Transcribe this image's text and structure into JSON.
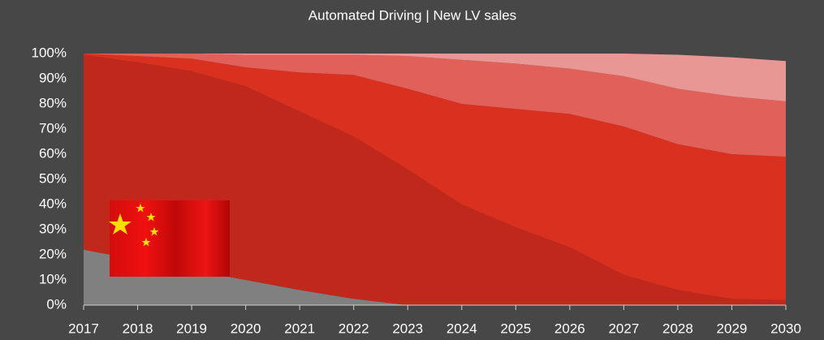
{
  "chart_data": {
    "type": "stacked-area",
    "title": "Automated Driving | New LV sales",
    "x": [
      2017,
      2018,
      2019,
      2020,
      2021,
      2022,
      2023,
      2024,
      2025,
      2026,
      2027,
      2028,
      2029,
      2030
    ],
    "series": [
      {
        "color": "#808080",
        "values": [
          22,
          18,
          14,
          10,
          6,
          2.5,
          0,
          0,
          0,
          0,
          0,
          0,
          0,
          0
        ]
      },
      {
        "color": "#c0281c",
        "values": [
          77.5,
          78.5,
          79,
          77,
          71,
          64.5,
          54,
          40,
          31,
          23,
          12,
          6,
          2.5,
          2
        ]
      },
      {
        "color": "#d9301f",
        "values": [
          0.5,
          2.5,
          5,
          7.5,
          15.5,
          24.5,
          32,
          40,
          47,
          53,
          59,
          58,
          57.5,
          57
        ]
      },
      {
        "color": "#e2605a",
        "values": [
          0,
          1,
          2,
          5,
          7,
          8,
          13,
          17.5,
          18,
          18,
          20,
          22,
          23,
          22
        ]
      },
      {
        "color": "#e99794",
        "values": [
          0,
          0,
          0,
          0.5,
          0.5,
          0.5,
          1,
          2.5,
          4,
          6,
          9,
          13.5,
          15.5,
          16
        ]
      }
    ],
    "xlim": [
      2017,
      2030
    ],
    "xticks": [
      2017,
      2018,
      2019,
      2020,
      2021,
      2022,
      2023,
      2024,
      2025,
      2026,
      2027,
      2028,
      2029,
      2030
    ],
    "ylim": [
      0,
      100
    ],
    "yticks": [
      {
        "value": 0,
        "label": "0%"
      },
      {
        "value": 10,
        "label": "10%"
      },
      {
        "value": 20,
        "label": "20%"
      },
      {
        "value": 30,
        "label": "30%"
      },
      {
        "value": 40,
        "label": "40%"
      },
      {
        "value": 50,
        "label": "50%"
      },
      {
        "value": 60,
        "label": "60%"
      },
      {
        "value": 70,
        "label": "70%"
      },
      {
        "value": 80,
        "label": "80%"
      },
      {
        "value": 90,
        "label": "90%"
      },
      {
        "value": 100,
        "label": "100%"
      }
    ]
  }
}
